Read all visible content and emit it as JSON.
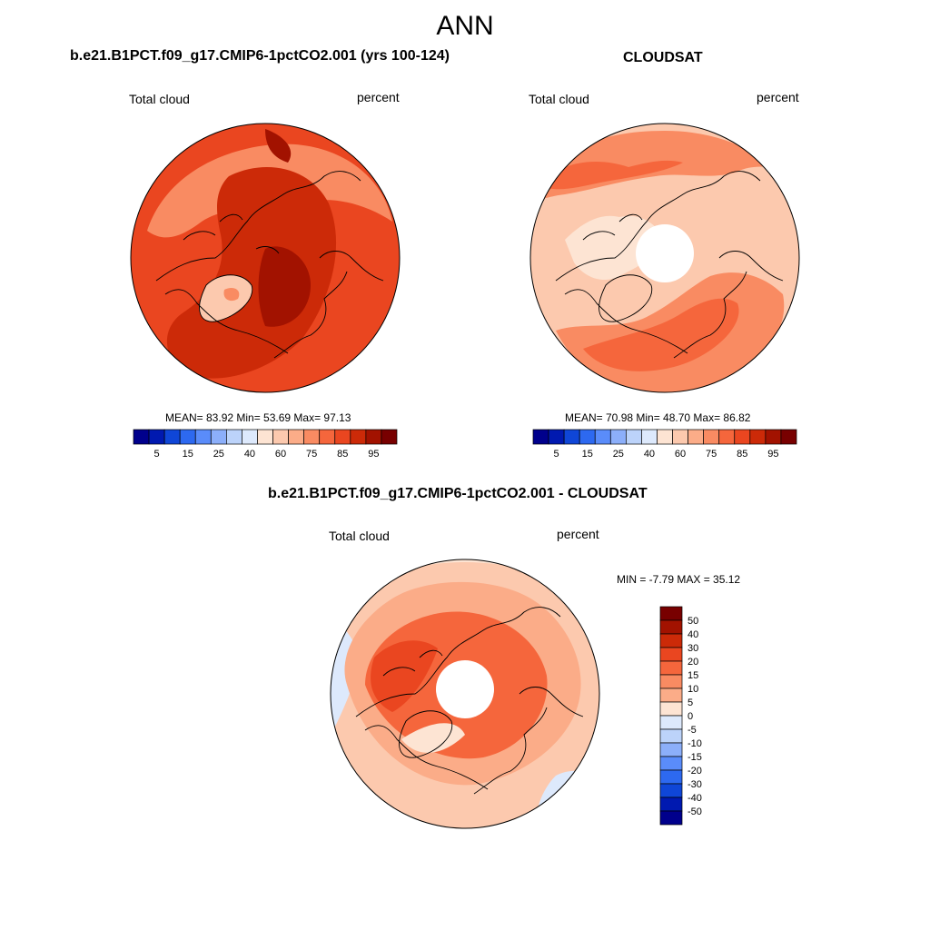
{
  "title": "ANN",
  "variable": "Total cloud",
  "units": "percent",
  "panels": [
    {
      "title": "b.e21.B1PCT.f09_g17.CMIP6-1pctCO2.001 (yrs 100-124)",
      "stats": "MEAN=  83.92  Min=  53.69  Max=  97.13",
      "has_hole": false,
      "base_level": 10
    },
    {
      "title": "CLOUDSAT",
      "stats": "MEAN=  70.98  Min=  48.70  Max=  86.82",
      "has_hole": true,
      "base_level": 6
    },
    {
      "title": "b.e21.B1PCT.f09_g17.CMIP6-1pctCO2.001 - CLOUDSAT",
      "stats": "MIN =  -7.79 MAX =  35.12",
      "has_hole": true,
      "base_level": 8
    }
  ],
  "abs_colorbar": {
    "labels": [
      "5",
      "15",
      "25",
      "40",
      "60",
      "75",
      "85",
      "95"
    ],
    "colors": [
      "#00008c",
      "#0019b0",
      "#0f46d7",
      "#2d69f0",
      "#5a8cfa",
      "#8caffa",
      "#bcd3fa",
      "#dde9fc",
      "#fde4d3",
      "#fcc9ae",
      "#fbac88",
      "#f98b62",
      "#f5663c",
      "#ea4620",
      "#cc2a08",
      "#a21200",
      "#780000"
    ]
  },
  "diff_colorbar": {
    "labels": [
      "50",
      "40",
      "30",
      "20",
      "15",
      "10",
      "5",
      "0",
      "-5",
      "-10",
      "-15",
      "-20",
      "-30",
      "-40",
      "-50"
    ],
    "colors": [
      "#780000",
      "#a21200",
      "#cc2a08",
      "#ea4620",
      "#f5663c",
      "#f98b62",
      "#fbac88",
      "#fde4d3",
      "#dde9fc",
      "#bcd3fa",
      "#8caffa",
      "#5a8cfa",
      "#2d69f0",
      "#0f46d7",
      "#0019b0",
      "#00008c"
    ]
  },
  "map_fill_colors": {
    "p1_base": "#ea4620",
    "p1_hi": "#cc2a08",
    "p1_max": "#a21200",
    "p1_low": "#fcc9ae",
    "p1_mid": "#f98b62",
    "p2_base": "#fcc9ae",
    "p2_mid": "#f98b62",
    "p2_hi": "#f5663c",
    "p2_low": "#fde4d3",
    "p3_base": "#fcc9ae",
    "p3_mid": "#fbac88",
    "p3_hi": "#f5663c",
    "p3_max": "#ea4620",
    "p3_low": "#fde4d3",
    "p3_neg": "#dde9fc"
  }
}
